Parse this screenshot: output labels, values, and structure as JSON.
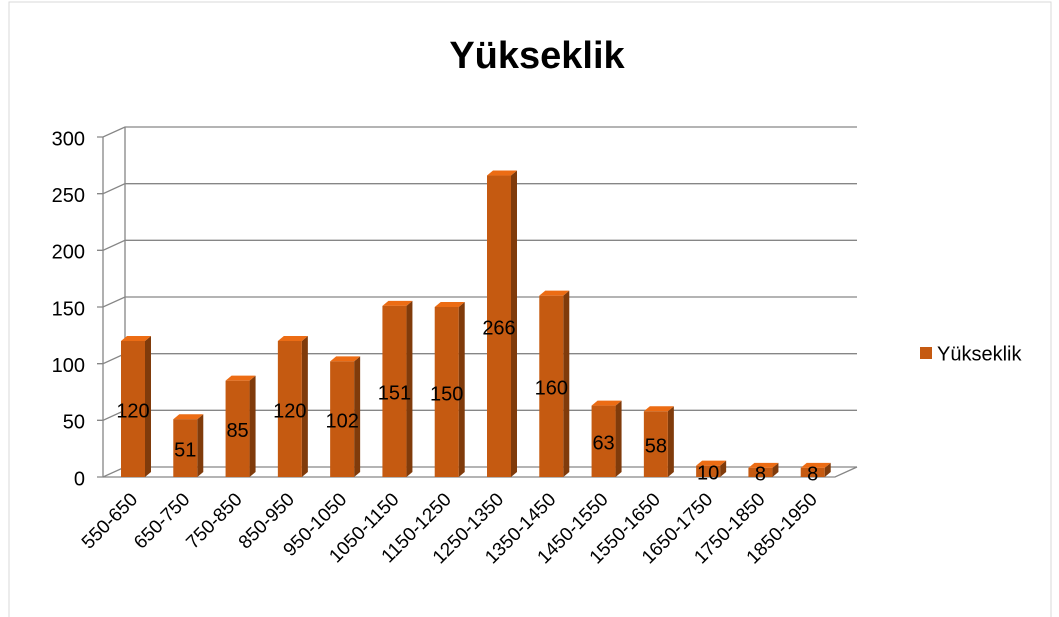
{
  "chart_data": {
    "type": "bar",
    "title": "Yükseklik",
    "categories": [
      "550-650",
      "650-750",
      "750-850",
      "850-950",
      "950-1050",
      "1050-1150",
      "1150-1250",
      "1250-1350",
      "1350-1450",
      "1450-1550",
      "1550-1650",
      "1650-1750",
      "1750-1850",
      "1850-1950"
    ],
    "series": [
      {
        "name": "Yükseklik",
        "color": "#c55a11",
        "values": [
          120,
          51,
          85,
          120,
          102,
          151,
          150,
          266,
          160,
          63,
          58,
          10,
          8,
          8
        ]
      }
    ],
    "ylim": [
      0,
      300
    ],
    "yticks": [
      0,
      50,
      100,
      150,
      200,
      250,
      300
    ],
    "grid": true,
    "legend": "right"
  }
}
